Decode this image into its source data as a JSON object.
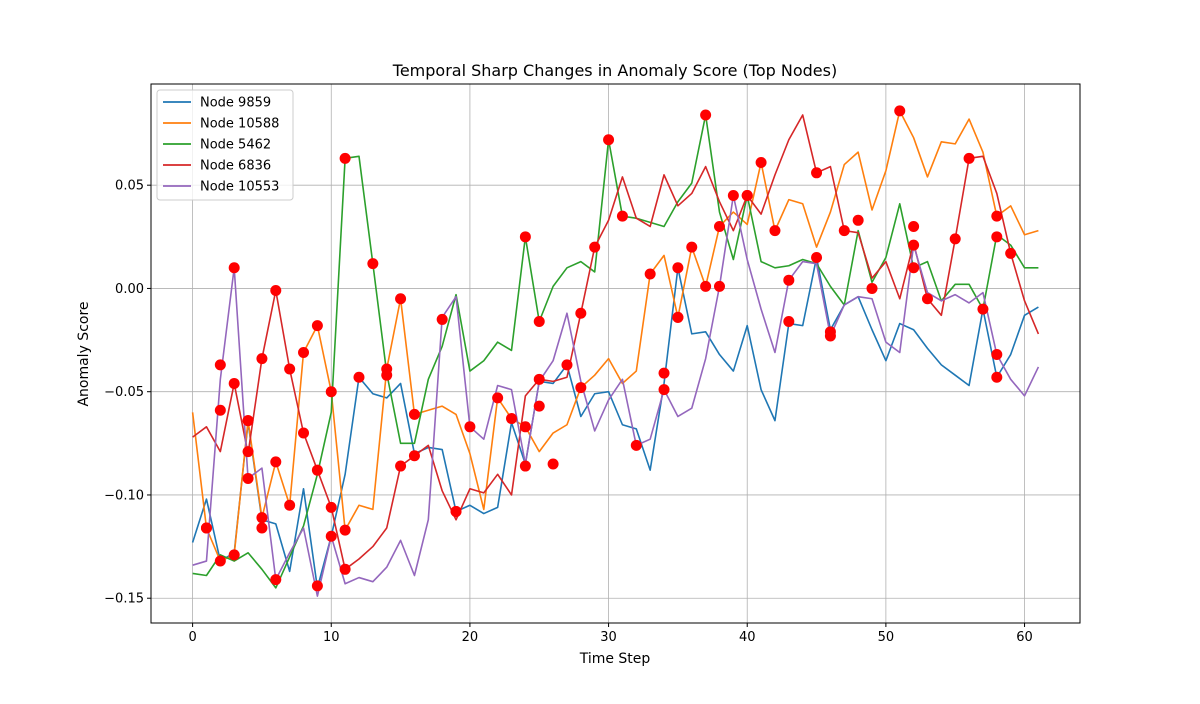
{
  "chart_data": {
    "type": "line",
    "title": "Temporal Sharp Changes in Anomaly Score (Top Nodes)",
    "xlabel": "Time Step",
    "ylabel": "Anomaly Score",
    "xlim": [
      -3,
      64
    ],
    "ylim": [
      -0.162,
      0.099
    ],
    "x_ticks": [
      0,
      10,
      20,
      30,
      40,
      50,
      60
    ],
    "x_tick_labels": [
      "0",
      "10",
      "20",
      "30",
      "40",
      "50",
      "60"
    ],
    "y_ticks": [
      -0.15,
      -0.1,
      -0.05,
      0.0,
      0.05
    ],
    "y_tick_labels": [
      "−0.15",
      "−0.10",
      "−0.05",
      "0.00",
      "0.05"
    ],
    "grid": true,
    "legend_position": "top-left",
    "marker_color": "#ff0000",
    "series": [
      {
        "name": "Node 9859",
        "color": "#1f77b4",
        "values": [
          -0.123,
          -0.102,
          -0.132,
          -0.128,
          -0.065,
          -0.112,
          -0.114,
          -0.137,
          -0.097,
          -0.145,
          -0.12,
          -0.09,
          -0.043,
          -0.051,
          -0.053,
          -0.046,
          -0.08,
          -0.077,
          -0.078,
          -0.108,
          -0.105,
          -0.109,
          -0.106,
          -0.065,
          -0.085,
          -0.045,
          -0.046,
          -0.037,
          -0.062,
          -0.051,
          -0.05,
          -0.066,
          -0.068,
          -0.088,
          -0.046,
          0.01,
          -0.022,
          -0.021,
          -0.032,
          -0.04,
          -0.018,
          -0.049,
          -0.064,
          -0.017,
          -0.018,
          0.015,
          -0.02,
          -0.008,
          -0.004,
          -0.02,
          -0.035,
          -0.017,
          -0.02,
          -0.029,
          -0.037,
          -0.042,
          -0.047,
          -0.01,
          -0.043,
          -0.032,
          -0.013,
          -0.009
        ],
        "markers": [
          [
            35,
            0.01
          ],
          [
            45,
            0.015
          ]
        ]
      },
      {
        "name": "Node 10588",
        "color": "#ff7f0e",
        "values": [
          -0.06,
          -0.116,
          -0.132,
          -0.129,
          -0.064,
          -0.111,
          -0.084,
          -0.105,
          -0.031,
          -0.018,
          -0.05,
          -0.117,
          -0.105,
          -0.107,
          -0.039,
          -0.005,
          -0.061,
          -0.059,
          -0.057,
          -0.061,
          -0.08,
          -0.107,
          -0.053,
          -0.063,
          -0.067,
          -0.079,
          -0.07,
          -0.066,
          -0.048,
          -0.042,
          -0.034,
          -0.046,
          -0.04,
          0.007,
          0.016,
          -0.014,
          0.02,
          0.001,
          0.03,
          0.037,
          0.031,
          0.061,
          0.028,
          0.043,
          0.041,
          0.02,
          0.037,
          0.06,
          0.066,
          0.038,
          0.057,
          0.086,
          0.073,
          0.054,
          0.071,
          0.07,
          0.082,
          0.066,
          0.035,
          0.04,
          0.026,
          0.028
        ],
        "markers": [
          [
            1,
            -0.116
          ],
          [
            2,
            -0.132
          ],
          [
            3,
            -0.129
          ],
          [
            4,
            -0.064
          ],
          [
            5,
            -0.111
          ],
          [
            6,
            -0.084
          ],
          [
            7,
            -0.105
          ],
          [
            8,
            -0.031
          ],
          [
            9,
            -0.018
          ],
          [
            10,
            -0.05
          ],
          [
            11,
            -0.117
          ],
          [
            14,
            -0.039
          ],
          [
            15,
            -0.005
          ],
          [
            16,
            -0.061
          ],
          [
            20,
            -0.067
          ],
          [
            23,
            -0.063
          ],
          [
            24,
            -0.067
          ],
          [
            25,
            -0.057
          ],
          [
            26,
            -0.085
          ],
          [
            27,
            -0.037
          ],
          [
            28,
            -0.048
          ],
          [
            33,
            0.007
          ],
          [
            35,
            -0.014
          ],
          [
            36,
            0.02
          ],
          [
            37,
            0.001
          ],
          [
            38,
            0.03
          ],
          [
            40,
            0.045
          ],
          [
            41,
            0.061
          ],
          [
            46,
            -0.021
          ],
          [
            48,
            0.033
          ],
          [
            51,
            0.086
          ],
          [
            52,
            0.03
          ],
          [
            58,
            0.035
          ]
        ]
      },
      {
        "name": "Node 5462",
        "color": "#2ca02c",
        "values": [
          -0.138,
          -0.139,
          -0.129,
          -0.132,
          -0.128,
          -0.136,
          -0.145,
          -0.13,
          -0.115,
          -0.09,
          -0.06,
          0.063,
          0.064,
          0.012,
          -0.041,
          -0.075,
          -0.075,
          -0.044,
          -0.028,
          -0.003,
          -0.04,
          -0.035,
          -0.026,
          -0.03,
          0.025,
          -0.016,
          0.001,
          0.01,
          0.013,
          0.008,
          0.072,
          0.035,
          0.034,
          0.032,
          0.03,
          0.042,
          0.051,
          0.084,
          0.037,
          0.014,
          0.045,
          0.013,
          0.01,
          0.011,
          0.014,
          0.012,
          0.001,
          -0.008,
          0.028,
          0.003,
          0.015,
          0.041,
          0.01,
          0.013,
          -0.006,
          0.002,
          0.002,
          -0.01,
          0.026,
          0.021,
          0.01,
          0.01
        ],
        "markers": [
          [
            11,
            0.063
          ],
          [
            13,
            0.012
          ],
          [
            24,
            0.025
          ],
          [
            25,
            -0.016
          ],
          [
            30,
            0.072
          ],
          [
            31,
            0.035
          ],
          [
            37,
            0.084
          ],
          [
            39,
            0.045
          ],
          [
            40,
            0.045
          ]
        ]
      },
      {
        "name": "Node 6836",
        "color": "#d62728",
        "values": [
          -0.072,
          -0.067,
          -0.079,
          -0.046,
          -0.08,
          -0.034,
          -0.001,
          -0.039,
          -0.07,
          -0.088,
          -0.106,
          -0.136,
          -0.131,
          -0.125,
          -0.116,
          -0.086,
          -0.081,
          -0.076,
          -0.098,
          -0.112,
          -0.097,
          -0.099,
          -0.09,
          -0.1,
          -0.052,
          -0.044,
          -0.045,
          -0.043,
          -0.012,
          0.02,
          0.033,
          0.054,
          0.034,
          0.03,
          0.055,
          0.04,
          0.046,
          0.059,
          0.042,
          0.028,
          0.045,
          0.036,
          0.055,
          0.072,
          0.084,
          0.056,
          0.059,
          0.028,
          0.027,
          0.005,
          0.013,
          -0.005,
          0.022,
          -0.005,
          -0.013,
          0.024,
          0.063,
          0.064,
          0.046,
          0.017,
          -0.006,
          -0.022
        ],
        "markers": [
          [
            2,
            -0.037
          ],
          [
            3,
            -0.046
          ],
          [
            4,
            -0.079
          ],
          [
            5,
            -0.034
          ],
          [
            6,
            -0.001
          ],
          [
            7,
            -0.039
          ],
          [
            8,
            -0.07
          ],
          [
            9,
            -0.088
          ],
          [
            10,
            -0.106
          ],
          [
            11,
            -0.136
          ],
          [
            15,
            -0.086
          ],
          [
            16,
            -0.081
          ],
          [
            19,
            -0.108
          ],
          [
            24,
            -0.086
          ],
          [
            25,
            -0.044
          ],
          [
            28,
            -0.012
          ],
          [
            29,
            0.02
          ],
          [
            45,
            0.056
          ],
          [
            47,
            0.028
          ],
          [
            55,
            0.024
          ],
          [
            56,
            0.063
          ],
          [
            58,
            0.025
          ],
          [
            59,
            0.017
          ]
        ]
      },
      {
        "name": "Node 10553",
        "color": "#9467bd",
        "values": [
          -0.134,
          -0.132,
          -0.044,
          0.01,
          -0.092,
          -0.087,
          -0.141,
          -0.128,
          -0.116,
          -0.149,
          -0.12,
          -0.143,
          -0.14,
          -0.142,
          -0.135,
          -0.122,
          -0.139,
          -0.112,
          -0.014,
          -0.004,
          -0.067,
          -0.073,
          -0.047,
          -0.049,
          -0.085,
          -0.045,
          -0.035,
          -0.012,
          -0.045,
          -0.069,
          -0.054,
          -0.044,
          -0.076,
          -0.073,
          -0.049,
          -0.062,
          -0.058,
          -0.034,
          0.001,
          0.045,
          0.014,
          -0.01,
          -0.031,
          0.004,
          0.013,
          0.012,
          -0.023,
          -0.008,
          -0.004,
          -0.005,
          -0.026,
          -0.031,
          0.021,
          -0.002,
          -0.006,
          -0.003,
          -0.007,
          -0.002,
          -0.032,
          -0.044,
          -0.052,
          -0.038
        ],
        "markers": [
          [
            3,
            0.01
          ],
          [
            4,
            -0.092
          ],
          [
            6,
            -0.141
          ],
          [
            9,
            -0.144
          ],
          [
            10,
            -0.12
          ],
          [
            14,
            -0.042
          ],
          [
            18,
            -0.015
          ],
          [
            34,
            -0.041
          ],
          [
            38,
            0.001
          ],
          [
            42,
            0.028
          ],
          [
            43,
            0.004
          ],
          [
            46,
            -0.023
          ],
          [
            49,
            0.0
          ],
          [
            52,
            0.021
          ],
          [
            53,
            -0.005
          ],
          [
            57,
            -0.01
          ],
          [
            58,
            -0.043
          ],
          [
            58,
            -0.032
          ],
          [
            52,
            0.01
          ],
          [
            43,
            -0.016
          ],
          [
            35,
            -0.014
          ],
          [
            34,
            -0.049
          ],
          [
            32,
            -0.076
          ],
          [
            22,
            -0.053
          ],
          [
            19,
            -0.108
          ],
          [
            12,
            -0.043
          ],
          [
            5,
            -0.116
          ],
          [
            1,
            -0.116
          ],
          [
            2,
            -0.059
          ],
          [
            4,
            -0.064
          ]
        ]
      }
    ]
  }
}
